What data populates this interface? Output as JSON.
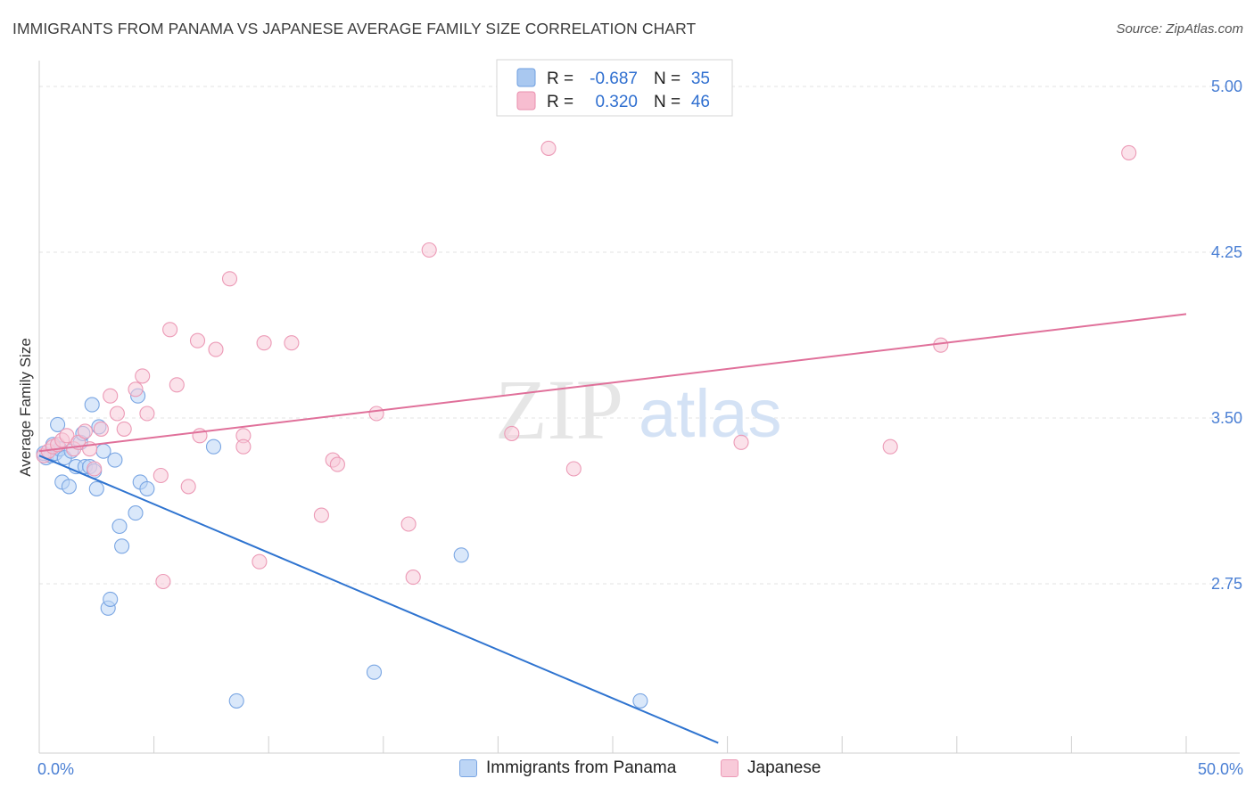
{
  "header": {
    "title": "IMMIGRANTS FROM PANAMA VS JAPANESE AVERAGE FAMILY SIZE CORRELATION CHART",
    "source": "Source: ZipAtlas.com"
  },
  "watermark": {
    "zip": "ZIP",
    "atlas": "atlas"
  },
  "legend": {
    "rows": [
      {
        "r_label": "R =",
        "r_value": "-0.687",
        "n_label": "N =",
        "n_value": "35",
        "color": "#a9c8f0",
        "stroke": "#6f9fe0"
      },
      {
        "r_label": "R =",
        "r_value": "0.320",
        "n_label": "N =",
        "n_value": "46",
        "color": "#f7bdd0",
        "stroke": "#ea8fae"
      }
    ]
  },
  "bottom_legend": [
    {
      "label": "Immigrants from Panama",
      "color": "#bcd5f5",
      "stroke": "#7aa6e3"
    },
    {
      "label": "Japanese",
      "color": "#f8cad9",
      "stroke": "#ec9ab6"
    }
  ],
  "chart_data": {
    "type": "scatter",
    "title": "IMMIGRANTS FROM PANAMA VS JAPANESE AVERAGE FAMILY SIZE CORRELATION CHART",
    "xlabel": "",
    "ylabel": "Average Family Size",
    "xlim": [
      0,
      50
    ],
    "ylim": [
      2.0,
      5.1
    ],
    "x_tick_labels": [
      "0.0%",
      "50.0%"
    ],
    "y_ticks": [
      2.75,
      3.5,
      4.25,
      5.0
    ],
    "y_tick_labels": [
      "2.75",
      "3.50",
      "4.25",
      "5.00"
    ],
    "grid": "horizontal dashed",
    "legend_position": "top-center",
    "series": [
      {
        "name": "Immigrants from Panama",
        "color": "#7aa6e3",
        "fill": "#bcd5f5",
        "trend": {
          "x": [
            0,
            29.6
          ],
          "y": [
            3.33,
            2.03
          ]
        },
        "points": [
          [
            0.3,
            3.32
          ],
          [
            0.5,
            3.33
          ],
          [
            0.7,
            3.34
          ],
          [
            0.9,
            3.36
          ],
          [
            0.8,
            3.47
          ],
          [
            1.0,
            3.21
          ],
          [
            1.1,
            3.32
          ],
          [
            1.3,
            3.19
          ],
          [
            1.4,
            3.35
          ],
          [
            1.6,
            3.28
          ],
          [
            1.8,
            3.39
          ],
          [
            1.9,
            3.43
          ],
          [
            2.0,
            3.28
          ],
          [
            2.2,
            3.28
          ],
          [
            2.3,
            3.56
          ],
          [
            2.4,
            3.26
          ],
          [
            2.5,
            3.18
          ],
          [
            2.6,
            3.46
          ],
          [
            2.8,
            3.35
          ],
          [
            3.0,
            2.64
          ],
          [
            3.1,
            2.68
          ],
          [
            3.3,
            3.31
          ],
          [
            3.5,
            3.01
          ],
          [
            3.6,
            2.92
          ],
          [
            4.2,
            3.07
          ],
          [
            4.3,
            3.6
          ],
          [
            4.4,
            3.21
          ],
          [
            4.7,
            3.18
          ],
          [
            7.6,
            3.37
          ],
          [
            8.6,
            2.22
          ],
          [
            14.6,
            2.35
          ],
          [
            18.4,
            2.88
          ],
          [
            26.2,
            2.22
          ],
          [
            0.2,
            3.34
          ],
          [
            0.6,
            3.38
          ]
        ]
      },
      {
        "name": "Japanese",
        "color": "#ec9ab6",
        "fill": "#f8cad9",
        "trend": {
          "x": [
            0,
            50
          ],
          "y": [
            3.35,
            3.97
          ]
        },
        "points": [
          [
            0.2,
            3.33
          ],
          [
            0.4,
            3.35
          ],
          [
            0.6,
            3.37
          ],
          [
            0.8,
            3.38
          ],
          [
            1.0,
            3.4
          ],
          [
            1.2,
            3.42
          ],
          [
            1.5,
            3.36
          ],
          [
            1.7,
            3.39
          ],
          [
            2.0,
            3.44
          ],
          [
            2.2,
            3.36
          ],
          [
            2.4,
            3.27
          ],
          [
            2.7,
            3.45
          ],
          [
            3.1,
            3.6
          ],
          [
            3.4,
            3.52
          ],
          [
            3.7,
            3.45
          ],
          [
            4.2,
            3.63
          ],
          [
            4.5,
            3.69
          ],
          [
            4.7,
            3.52
          ],
          [
            5.3,
            3.24
          ],
          [
            5.4,
            2.76
          ],
          [
            5.7,
            3.9
          ],
          [
            6.0,
            3.65
          ],
          [
            6.5,
            3.19
          ],
          [
            6.9,
            3.85
          ],
          [
            7.0,
            3.42
          ],
          [
            7.7,
            3.81
          ],
          [
            8.3,
            4.13
          ],
          [
            8.9,
            3.42
          ],
          [
            8.9,
            3.37
          ],
          [
            9.6,
            2.85
          ],
          [
            9.8,
            3.84
          ],
          [
            11.0,
            3.84
          ],
          [
            12.3,
            3.06
          ],
          [
            12.8,
            3.31
          ],
          [
            13.0,
            3.29
          ],
          [
            14.7,
            3.52
          ],
          [
            16.1,
            3.02
          ],
          [
            16.3,
            2.78
          ],
          [
            17.0,
            4.26
          ],
          [
            20.6,
            3.43
          ],
          [
            22.2,
            4.72
          ],
          [
            23.3,
            3.27
          ],
          [
            30.6,
            3.39
          ],
          [
            37.1,
            3.37
          ],
          [
            39.3,
            3.83
          ],
          [
            47.5,
            4.7
          ]
        ]
      }
    ]
  }
}
